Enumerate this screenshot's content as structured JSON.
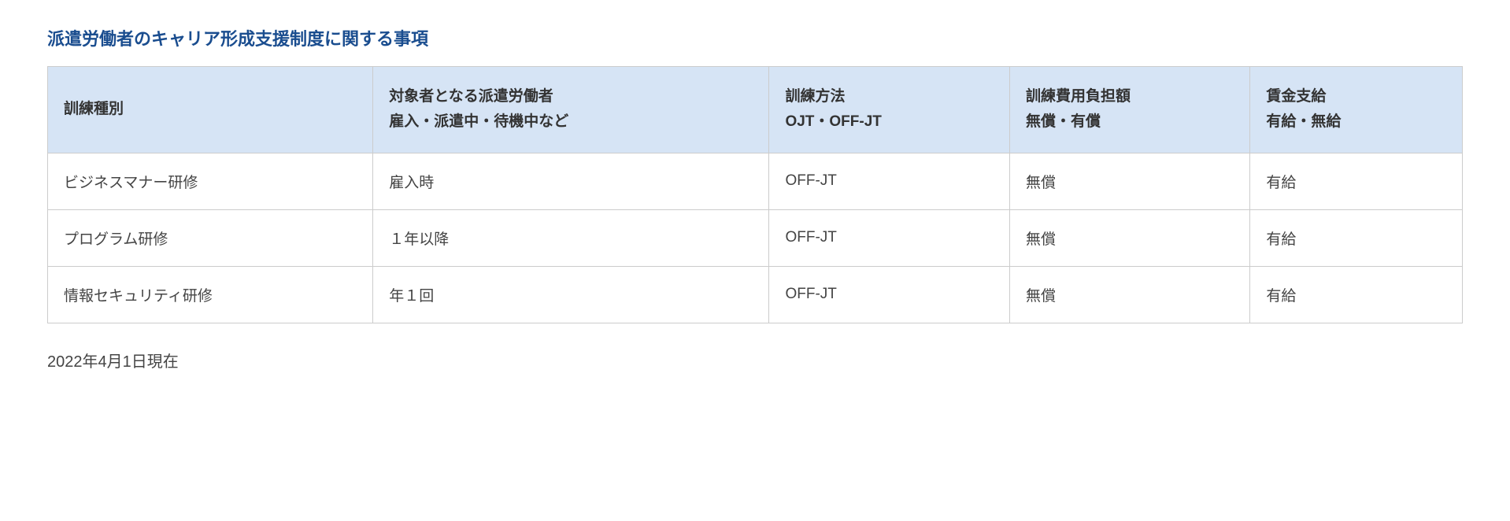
{
  "title": "派遣労働者のキャリア形成支援制度に関する事項",
  "table": {
    "type": "table",
    "background_color": "#ffffff",
    "border_color": "#cccccc",
    "header_background": "#d6e4f5",
    "header_text_color": "#333333",
    "cell_text_color": "#444444",
    "font_size": 19,
    "header_font_weight": "bold",
    "columns": [
      {
        "line1": "訓練種別",
        "line2": "",
        "width_pct": 23
      },
      {
        "line1": "対象者となる派遣労働者",
        "line2": "雇入・派遣中・待機中など",
        "width_pct": 28
      },
      {
        "line1": "訓練方法",
        "line2": "OJT・OFF-JT",
        "width_pct": 17
      },
      {
        "line1": "訓練費用負担額",
        "line2": "無償・有償",
        "width_pct": 17
      },
      {
        "line1": "賃金支給",
        "line2": "有給・無給",
        "width_pct": 15
      }
    ],
    "rows": [
      [
        "ビジネスマナー研修",
        "雇入時",
        "OFF-JT",
        "無償",
        "有給"
      ],
      [
        "プログラム研修",
        "１年以降",
        "OFF-JT",
        "無償",
        "有給"
      ],
      [
        "情報セキュリティ研修",
        "年１回",
        "OFF-JT",
        "無償",
        "有給"
      ]
    ]
  },
  "date_note": "2022年4月1日現在",
  "title_color": "#1a4d8f",
  "title_fontsize": 22
}
